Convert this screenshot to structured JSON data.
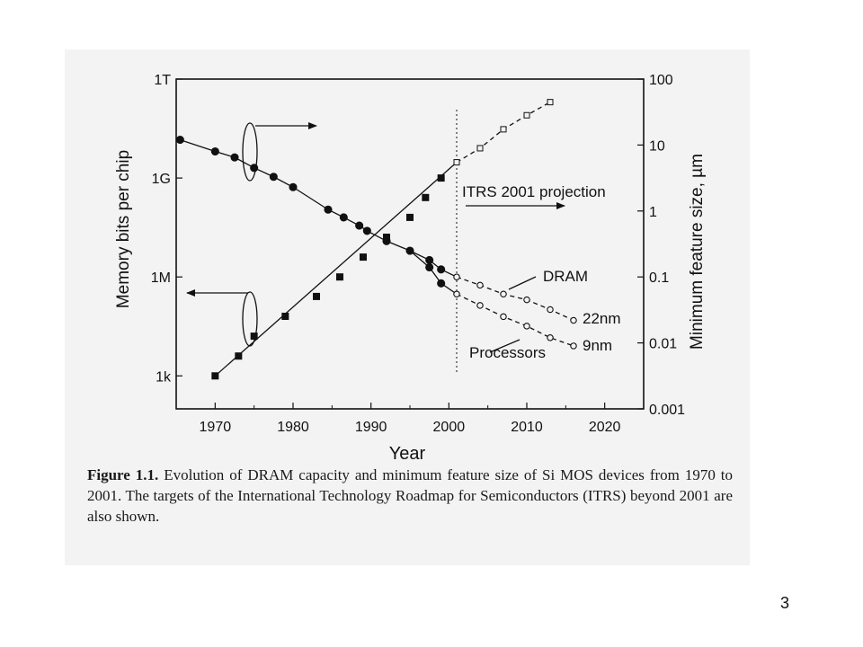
{
  "chart_data": {
    "type": "scatter",
    "xlabel": "Year",
    "ylabel_left": "Memory bits per chip",
    "ylabel_right": "Minimum feature size, µm",
    "xlim": [
      1965,
      2025
    ],
    "x_ticks": [
      1970,
      1980,
      1990,
      2000,
      2010,
      2020
    ],
    "y_left_scale": "log",
    "y_left_range_bits": [
      100,
      1000000000000.0
    ],
    "y_left_ticks": [
      {
        "label": "1T",
        "value": 1000000000000.0
      },
      {
        "label": "1G",
        "value": 1000000000.0
      },
      {
        "label": "1M",
        "value": 1000000.0
      },
      {
        "label": "1k",
        "value": 1000.0
      }
    ],
    "y_right_scale": "log",
    "y_right_range_um": [
      0.001,
      100
    ],
    "y_right_ticks": [
      {
        "label": "100",
        "value": 100
      },
      {
        "label": "10",
        "value": 10
      },
      {
        "label": "1",
        "value": 1
      },
      {
        "label": "0.1",
        "value": 0.1
      },
      {
        "label": "0.01",
        "value": 0.01
      },
      {
        "label": "0.001",
        "value": 0.001
      }
    ],
    "grid": false,
    "series": [
      {
        "name": "DRAM",
        "axis": "right",
        "marker": "filled-circle",
        "x": [
          1965.5,
          1970,
          1972.5,
          1975,
          1977.5,
          1980,
          1984.5,
          1986.5,
          1988.5,
          1989.5,
          1992,
          1995,
          1997.5,
          1999
        ],
        "y": [
          12,
          8,
          6.5,
          4.5,
          3.3,
          2.3,
          1.05,
          0.8,
          0.6,
          0.5,
          0.35,
          0.25,
          0.18,
          0.13
        ]
      },
      {
        "name": "Processors",
        "axis": "right",
        "marker": "filled-circle",
        "x": [
          1997.5,
          1999
        ],
        "y": [
          0.14,
          0.08
        ]
      },
      {
        "name": "ITRS 2001 projection",
        "axis": "right",
        "marker": "open-circle",
        "label": "22nm",
        "x": [
          2001,
          2004,
          2007,
          2010,
          2013,
          2016
        ],
        "y": [
          0.1,
          0.075,
          0.055,
          0.045,
          0.032,
          0.022
        ]
      },
      {
        "name": "ITRS 2001 projection",
        "axis": "right",
        "marker": "open-circle",
        "label": "9nm",
        "x": [
          2001,
          2004,
          2007,
          2010,
          2013,
          2016
        ],
        "y": [
          0.055,
          0.037,
          0.025,
          0.018,
          0.012,
          0.009
        ]
      },
      {
        "name": "Memory bits per chip",
        "axis": "left",
        "marker": "filled-square",
        "x": [
          1970,
          1973,
          1975,
          1979,
          1983,
          1986,
          1989,
          1992,
          1995,
          1997,
          1999
        ],
        "y": [
          1000,
          4000,
          16000,
          64000,
          256000,
          1000000,
          4000000,
          16000000,
          64000000,
          256000000,
          1000000000
        ]
      },
      {
        "name": "ITRS 2001 projection",
        "axis": "left",
        "marker": "open-square",
        "x": [
          2001,
          2004,
          2007,
          2010,
          2013
        ],
        "y": [
          3000000000,
          8000000000,
          30000000000,
          80000000000,
          200000000000
        ]
      }
    ],
    "annotations": [
      "ITRS 2001 projection",
      "DRAM",
      "22nm",
      "9nm",
      "Processors"
    ],
    "projection_start_year": 2001
  },
  "caption": {
    "label": "Figure 1.1.",
    "text": "Evolution of DRAM capacity and minimum feature size of Si MOS devices from 1970 to 2001. The targets of the International Technology Roadmap for Semiconductors (ITRS) beyond 2001 are also shown."
  },
  "page_number": "3"
}
